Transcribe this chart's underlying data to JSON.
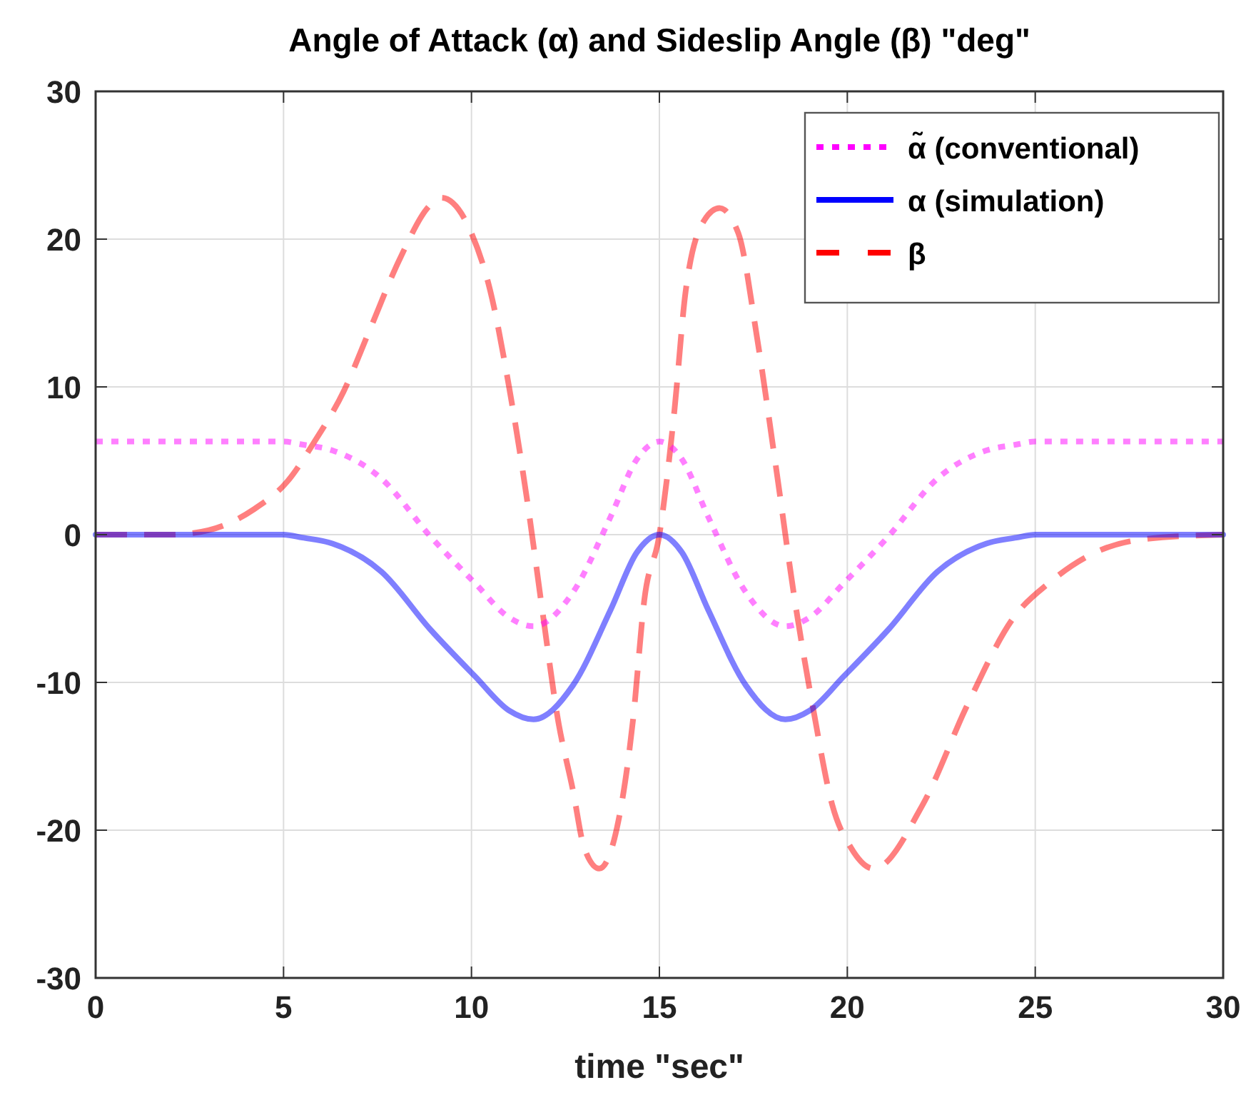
{
  "chart_data": {
    "type": "line",
    "title": "Angle of Attack (α) and Sideslip Angle (β) \"deg\"",
    "xlabel": "time \"sec\"",
    "xlim": [
      0,
      30
    ],
    "xticks": [
      0,
      5,
      10,
      15,
      20,
      25,
      30
    ],
    "ylim": [
      -30,
      30
    ],
    "yticks": [
      -30,
      -20,
      -10,
      0,
      10,
      20,
      30
    ],
    "grid": true,
    "legend": "top right",
    "series": [
      {
        "name": "α̃ (conventional)",
        "color": "#ff00ff",
        "line_style": "dotted",
        "x": [
          0,
          5,
          5.5,
          6.3,
          7.6,
          8.9,
          10.1,
          11,
          11.65,
          12.7,
          13.7,
          14.4,
          15,
          15.6,
          16.3,
          17.3,
          18.35,
          19,
          19.9,
          21.1,
          22.4,
          23.7,
          24.5,
          25,
          30
        ],
        "values": [
          6.3,
          6.3,
          6.1,
          5.7,
          3.8,
          -0.1,
          -3.3,
          -5.6,
          -6.2,
          -3.9,
          1.2,
          5.1,
          6.3,
          5.1,
          1.2,
          -3.9,
          -6.2,
          -5.6,
          -3.3,
          -0.1,
          3.8,
          5.7,
          6.1,
          6.3,
          6.3
        ]
      },
      {
        "name": "α (simulation)",
        "color": "#0000ff",
        "line_style": "solid",
        "x": [
          0,
          5,
          5.5,
          6.3,
          7.6,
          8.9,
          10.1,
          11,
          11.65,
          12.7,
          13.7,
          14.4,
          15,
          15.6,
          16.3,
          17.3,
          18.35,
          19,
          19.9,
          21.1,
          22.4,
          23.7,
          24.5,
          25,
          30
        ],
        "values": [
          0,
          0,
          -0.2,
          -0.6,
          -2.5,
          -6.4,
          -9.6,
          -11.9,
          -12.5,
          -10.2,
          -5.1,
          -1.2,
          0,
          -1.2,
          -5.1,
          -10.2,
          -12.5,
          -11.9,
          -9.6,
          -6.4,
          -2.5,
          -0.6,
          -0.2,
          0,
          0
        ]
      },
      {
        "name": "β",
        "color": "#ff0000",
        "line_style": "dashed",
        "x": [
          0,
          2,
          3,
          4.2,
          5.1,
          5.8,
          6.6,
          7.3,
          8.1,
          8.9,
          9.2,
          10,
          10.5,
          11,
          11.5,
          11.9,
          12.3,
          12.7,
          13,
          13.4,
          13.8,
          14.3,
          14.6,
          15,
          15.4,
          15.7,
          16.2,
          16.6,
          17.1,
          17.6,
          18.1,
          18.6,
          19.1,
          19.6,
          20.1,
          20.7,
          22,
          23.2,
          24.4,
          25.4,
          26.6,
          27.9,
          30
        ],
        "values": [
          0,
          0,
          0.3,
          1.7,
          3.6,
          6.2,
          9.7,
          13.9,
          18.7,
          22.3,
          22.8,
          20.4,
          16.5,
          10,
          2,
          -5.4,
          -12.5,
          -17.3,
          -21.2,
          -22.6,
          -20.6,
          -12.5,
          -4.4,
          0,
          8.4,
          16.5,
          21.3,
          22.1,
          20.4,
          13.3,
          4.6,
          -4.4,
          -11.9,
          -18.3,
          -21.2,
          -22.6,
          -18.3,
          -11.5,
          -5.7,
          -3.2,
          -1.2,
          -0.3,
          0
        ]
      }
    ]
  }
}
